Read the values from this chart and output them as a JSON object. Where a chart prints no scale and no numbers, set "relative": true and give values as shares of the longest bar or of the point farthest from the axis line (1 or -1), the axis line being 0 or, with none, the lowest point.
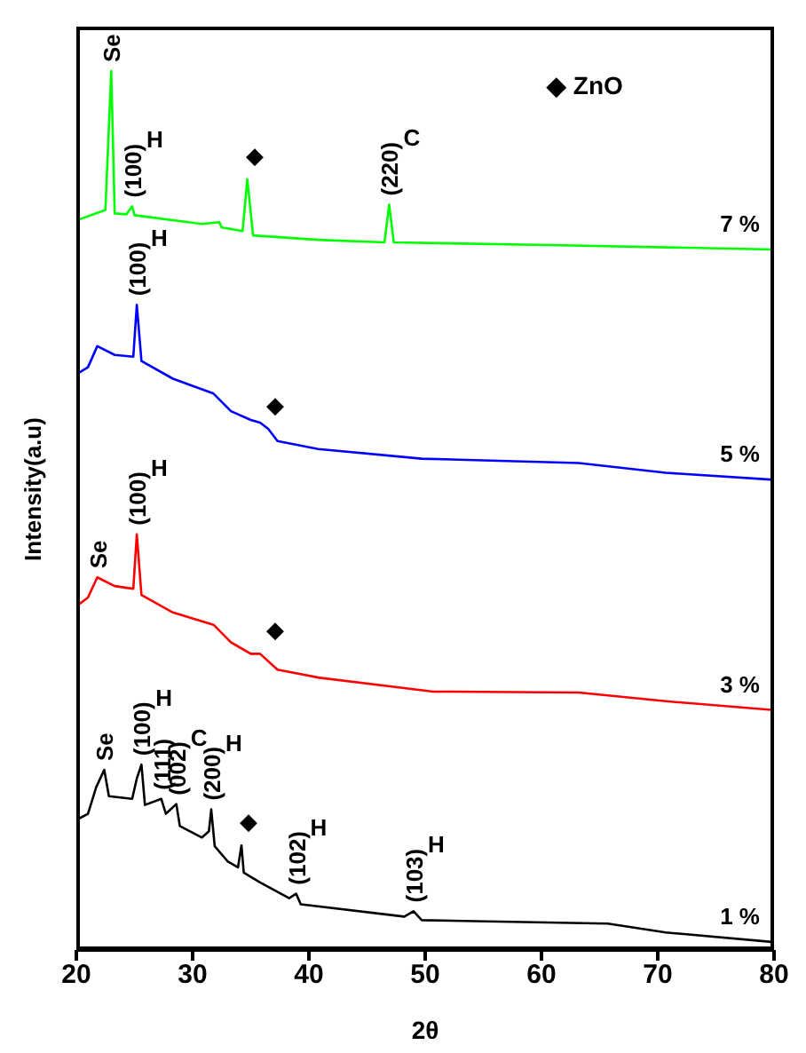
{
  "chart_data": {
    "type": "line",
    "relative": true,
    "xlabel": "2θ",
    "ylabel": "Intensity(a.u)",
    "xlim": [
      20,
      80
    ],
    "xticks": [
      20,
      30,
      40,
      50,
      60,
      70,
      80
    ],
    "grid": false,
    "legend": false,
    "marker": "none",
    "line_style": "solid",
    "series": [
      {
        "name": "7 %",
        "color": "#00ff00",
        "x": [
          20,
          22.5,
          23.0,
          23.3,
          24.3,
          24.8,
          25.0,
          30.8,
          32.3,
          32.5,
          34.3,
          34.7,
          35.2,
          40.8,
          46.5,
          46.9,
          47.3,
          60.7,
          80
        ],
        "values": [
          0.83,
          0.842,
          1.0,
          0.838,
          0.837,
          0.846,
          0.836,
          0.826,
          0.828,
          0.822,
          0.818,
          0.877,
          0.813,
          0.808,
          0.805,
          0.848,
          0.805,
          0.802,
          0.797
        ]
      },
      {
        "name": "5 %",
        "color": "#0000ff",
        "x": [
          20,
          21.0,
          21.8,
          23.3,
          24.9,
          25.2,
          25.6,
          28.3,
          31.8,
          33.3,
          35.0,
          35.8,
          36.5,
          37.3,
          40.8,
          49.7,
          63.2,
          70.7,
          80
        ],
        "values": [
          0.655,
          0.663,
          0.687,
          0.677,
          0.675,
          0.734,
          0.67,
          0.65,
          0.633,
          0.613,
          0.603,
          0.6,
          0.593,
          0.579,
          0.57,
          0.559,
          0.554,
          0.543,
          0.535
        ]
      },
      {
        "name": "3 %",
        "color": "#ff0000",
        "x": [
          20,
          21.0,
          21.8,
          23.3,
          24.9,
          25.2,
          25.6,
          28.3,
          31.8,
          33.3,
          35.0,
          35.8,
          37.3,
          40.8,
          50.7,
          63.2,
          70.7,
          80
        ],
        "values": [
          0.391,
          0.401,
          0.424,
          0.414,
          0.411,
          0.473,
          0.404,
          0.384,
          0.37,
          0.35,
          0.337,
          0.337,
          0.319,
          0.31,
          0.294,
          0.293,
          0.283,
          0.273
        ]
      },
      {
        "name": "1 %",
        "color": "#000000",
        "x": [
          20,
          21.0,
          21.7,
          22.4,
          22.8,
          24.8,
          25.2,
          25.6,
          25.9,
          27.3,
          27.7,
          28.6,
          28.9,
          30.8,
          31.4,
          31.6,
          31.9,
          33.0,
          33.9,
          34.2,
          34.4,
          35.8,
          38.3,
          38.9,
          39.3,
          48.2,
          49.0,
          49.7,
          65.7,
          70.7,
          80
        ],
        "values": [
          0.148,
          0.155,
          0.185,
          0.205,
          0.175,
          0.172,
          0.195,
          0.211,
          0.165,
          0.172,
          0.155,
          0.166,
          0.141,
          0.128,
          0.135,
          0.16,
          0.118,
          0.101,
          0.094,
          0.119,
          0.088,
          0.077,
          0.059,
          0.064,
          0.052,
          0.038,
          0.044,
          0.034,
          0.03,
          0.02,
          0.009
        ]
      }
    ],
    "annotations": [
      {
        "text": "Se",
        "x": 23.0,
        "y": 1.0
      },
      {
        "text": "(100) H",
        "x": 24.8,
        "y": 0.846
      },
      {
        "text": "◆",
        "x": 34.7,
        "y": 0.877
      },
      {
        "text": "(220) C",
        "x": 46.9,
        "y": 0.848
      },
      {
        "text": "(100) H",
        "x": 25.2,
        "y": 0.734
      },
      {
        "text": "◆",
        "x": 36.5,
        "y": 0.593
      },
      {
        "text": "Se",
        "x": 21.8,
        "y": 0.424
      },
      {
        "text": "(100) H",
        "x": 25.2,
        "y": 0.473
      },
      {
        "text": "◆",
        "x": 36.5,
        "y": 0.337
      },
      {
        "text": "Se",
        "x": 22.4,
        "y": 0.205
      },
      {
        "text": "(100) H",
        "x": 25.6,
        "y": 0.211
      },
      {
        "text": "(111)",
        "x": 27.3,
        "y": 0.172
      },
      {
        "text": "(002) C",
        "x": 28.6,
        "y": 0.166
      },
      {
        "text": "(200) H",
        "x": 31.6,
        "y": 0.16
      },
      {
        "text": "◆",
        "x": 34.2,
        "y": 0.119
      },
      {
        "text": "(102) H",
        "x": 38.9,
        "y": 0.064
      },
      {
        "text": "(103) H",
        "x": 49.0,
        "y": 0.044
      },
      "◆ ZnO"
    ]
  }
}
